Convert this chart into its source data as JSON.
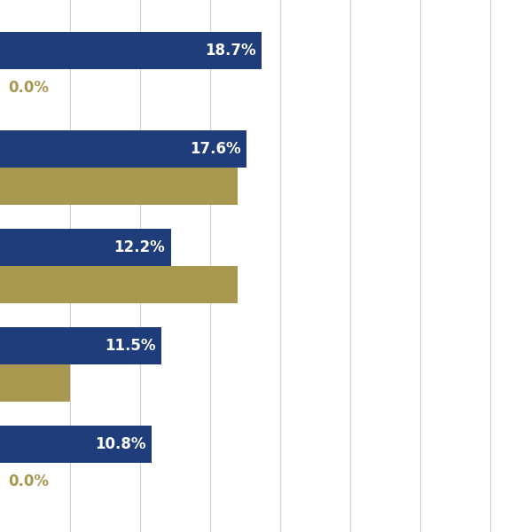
{
  "groups": 5,
  "blue_values": [
    18.7,
    17.6,
    12.2,
    11.5,
    10.8
  ],
  "gold_values": [
    0.0,
    17.0,
    17.0,
    5.0,
    0.0
  ],
  "blue_color": "#1F3D7A",
  "gold_color": "#A89850",
  "background_color": "#FFFFFF",
  "bar_height": 0.38,
  "xlim": [
    0,
    38
  ],
  "grid_color": "#D0D0D0",
  "label_fontsize": 12,
  "text_color_blue": "#FFFFFF",
  "text_color_gold": "#A89850",
  "grid_positions": [
    5,
    10,
    15,
    20,
    25,
    30,
    35
  ]
}
